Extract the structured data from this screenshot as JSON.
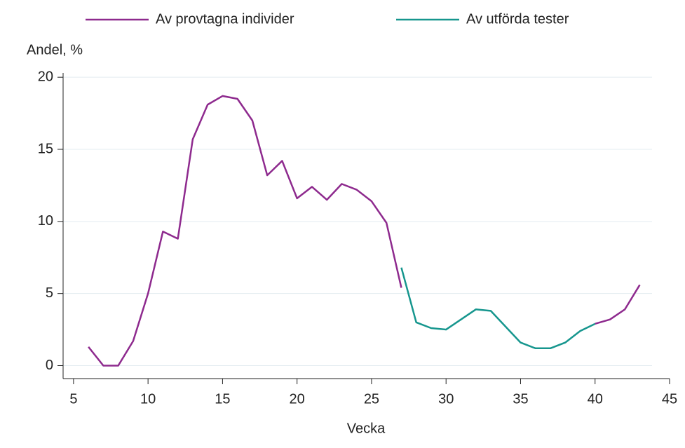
{
  "chart_data": {
    "type": "line",
    "y_label": "Andel, %",
    "x_label": "Vecka",
    "x": [
      6,
      7,
      8,
      9,
      10,
      11,
      12,
      13,
      14,
      15,
      16,
      17,
      18,
      19,
      20,
      21,
      22,
      23,
      24,
      25,
      26,
      27,
      28,
      29,
      30,
      31,
      32,
      33,
      34,
      35,
      36,
      37,
      38,
      39,
      40,
      41,
      42,
      43
    ],
    "series": [
      {
        "name": "Av provtagna individer",
        "color": "#8e2a8e",
        "values": [
          1.3,
          0,
          0,
          1.7,
          5.0,
          9.3,
          8.8,
          15.7,
          18.1,
          18.7,
          18.5,
          17.0,
          13.2,
          14.2,
          11.6,
          12.4,
          11.5,
          12.6,
          12.2,
          11.4,
          9.9,
          5.4,
          null,
          null,
          null,
          null,
          null,
          null,
          null,
          null,
          null,
          null,
          null,
          null,
          2.9,
          3.2,
          3.9,
          5.6
        ]
      },
      {
        "name": "Av utförda tester",
        "color": "#16968e",
        "values": [
          null,
          null,
          null,
          null,
          null,
          null,
          null,
          null,
          null,
          null,
          null,
          null,
          null,
          null,
          null,
          null,
          null,
          null,
          null,
          null,
          null,
          6.8,
          3.0,
          2.6,
          2.5,
          3.2,
          3.9,
          3.8,
          2.7,
          1.6,
          1.2,
          1.2,
          1.6,
          2.4,
          2.9,
          null,
          null,
          null
        ]
      }
    ],
    "xlim": [
      4.3,
      45
    ],
    "xticks": [
      5,
      10,
      15,
      20,
      25,
      30,
      35,
      40,
      45
    ],
    "ylim": [
      -0.9,
      20.3
    ],
    "yticks": [
      0,
      5,
      10,
      15,
      20
    ],
    "grid": true
  }
}
